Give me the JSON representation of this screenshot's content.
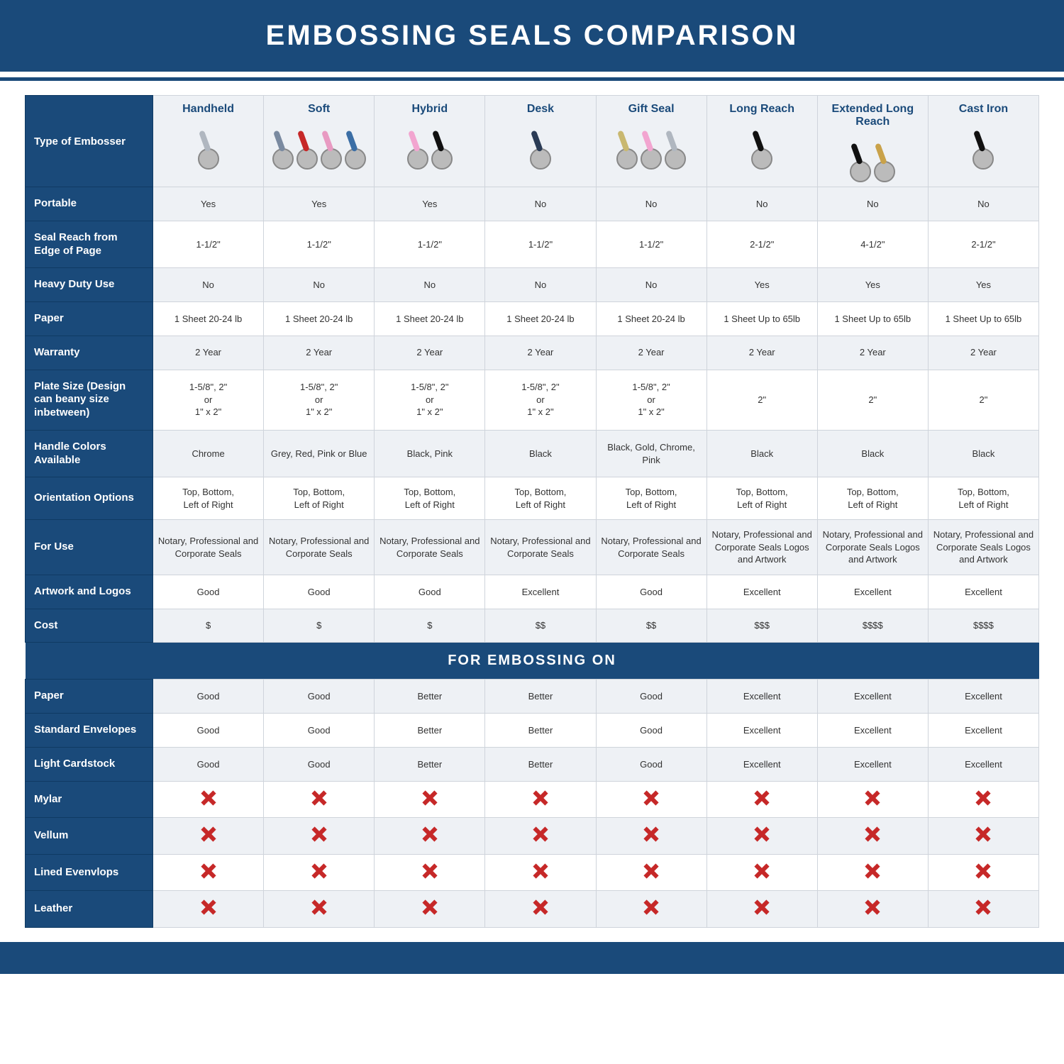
{
  "title": "EMBOSSING SEALS COMPARISON",
  "section_title": "FOR EMBOSSING ON",
  "colors": {
    "primary": "#1a4a7a",
    "header_bg": "#eef1f5",
    "stripe_a": "#eef1f5",
    "stripe_b": "#ffffff",
    "border": "#cfd4db",
    "text": "#333333",
    "x_red": "#c62828"
  },
  "fonts": {
    "title_pt": 40,
    "colhead_pt": 16,
    "rowhead_pt": 15,
    "cell_pt": 13,
    "section_pt": 20
  },
  "row_header_label": "Type of Embosser",
  "columns": [
    {
      "label": "Handheld",
      "img_colors": [
        "#b0b7c0"
      ]
    },
    {
      "label": "Soft",
      "img_colors": [
        "#7a8aa0",
        "#c62828",
        "#e89ac2",
        "#3b6ea5"
      ]
    },
    {
      "label": "Hybrid",
      "img_colors": [
        "#f2a5d0",
        "#111111"
      ]
    },
    {
      "label": "Desk",
      "img_colors": [
        "#2a3b55"
      ]
    },
    {
      "label": "Gift Seal",
      "img_colors": [
        "#c9b870",
        "#f2a5d0",
        "#b0b7c0"
      ]
    },
    {
      "label": "Long Reach",
      "img_colors": [
        "#111111"
      ]
    },
    {
      "label": "Extended Long Reach",
      "img_colors": [
        "#111111",
        "#c9a24a"
      ]
    },
    {
      "label": "Cast Iron",
      "img_colors": [
        "#111111"
      ]
    }
  ],
  "spec_rows": [
    {
      "label": "Portable",
      "values": [
        "Yes",
        "Yes",
        "Yes",
        "No",
        "No",
        "No",
        "No",
        "No"
      ]
    },
    {
      "label": "Seal Reach from Edge of Page",
      "values": [
        "1-1/2\"",
        "1-1/2\"",
        "1-1/2\"",
        "1-1/2\"",
        "1-1/2\"",
        "2-1/2\"",
        "4-1/2\"",
        "2-1/2\""
      ]
    },
    {
      "label": "Heavy Duty Use",
      "values": [
        "No",
        "No",
        "No",
        "No",
        "No",
        "Yes",
        "Yes",
        "Yes"
      ]
    },
    {
      "label": "Paper",
      "values": [
        "1 Sheet 20-24 lb",
        "1 Sheet 20-24 lb",
        "1 Sheet 20-24 lb",
        "1 Sheet 20-24 lb",
        "1 Sheet 20-24 lb",
        "1 Sheet Up to 65lb",
        "1 Sheet Up to 65lb",
        "1 Sheet Up to 65lb"
      ]
    },
    {
      "label": "Warranty",
      "values": [
        "2 Year",
        "2 Year",
        "2 Year",
        "2 Year",
        "2 Year",
        "2 Year",
        "2 Year",
        "2 Year"
      ]
    },
    {
      "label": "Plate Size (Design can beany size inbetween)",
      "values": [
        "1-5/8\", 2\"\nor\n1\" x 2\"",
        "1-5/8\", 2\"\nor\n1\" x 2\"",
        "1-5/8\", 2\"\nor\n1\" x 2\"",
        "1-5/8\", 2\"\nor\n1\" x 2\"",
        "1-5/8\", 2\"\nor\n1\" x 2\"",
        "2\"",
        "2\"",
        "2\""
      ]
    },
    {
      "label": "Handle Colors Available",
      "values": [
        "Chrome",
        "Grey, Red, Pink or Blue",
        "Black, Pink",
        "Black",
        "Black, Gold, Chrome, Pink",
        "Black",
        "Black",
        "Black"
      ]
    },
    {
      "label": "Orientation Options",
      "values": [
        "Top, Bottom,\nLeft of Right",
        "Top, Bottom,\nLeft of Right",
        "Top, Bottom,\nLeft of Right",
        "Top, Bottom,\nLeft of Right",
        "Top, Bottom,\nLeft of Right",
        "Top, Bottom,\nLeft of Right",
        "Top, Bottom,\nLeft of Right",
        "Top, Bottom,\nLeft of Right"
      ]
    },
    {
      "label": "For Use",
      "values": [
        "Notary, Professional and Corporate Seals",
        "Notary, Professional and Corporate Seals",
        "Notary, Professional and Corporate Seals",
        "Notary, Professional and Corporate Seals",
        "Notary, Professional and Corporate Seals",
        "Notary, Professional and Corporate Seals Logos and Artwork",
        "Notary, Professional and Corporate Seals Logos and Artwork",
        "Notary, Professional and Corporate Seals Logos and Artwork"
      ]
    },
    {
      "label": "Artwork and Logos",
      "values": [
        "Good",
        "Good",
        "Good",
        "Excellent",
        "Good",
        "Excellent",
        "Excellent",
        "Excellent"
      ]
    },
    {
      "label": "Cost",
      "values": [
        "$",
        "$",
        "$",
        "$$",
        "$$",
        "$$$",
        "$$$$",
        "$$$$"
      ]
    }
  ],
  "emboss_rows": [
    {
      "label": "Paper",
      "values": [
        "Good",
        "Good",
        "Better",
        "Better",
        "Good",
        "Excellent",
        "Excellent",
        "Excellent"
      ]
    },
    {
      "label": "Standard Envelopes",
      "values": [
        "Good",
        "Good",
        "Better",
        "Better",
        "Good",
        "Excellent",
        "Excellent",
        "Excellent"
      ]
    },
    {
      "label": "Light Cardstock",
      "values": [
        "Good",
        "Good",
        "Better",
        "Better",
        "Good",
        "Excellent",
        "Excellent",
        "Excellent"
      ]
    },
    {
      "label": "Mylar",
      "values": [
        "X",
        "X",
        "X",
        "X",
        "X",
        "X",
        "X",
        "X"
      ]
    },
    {
      "label": "Vellum",
      "values": [
        "X",
        "X",
        "X",
        "X",
        "X",
        "X",
        "X",
        "X"
      ]
    },
    {
      "label": "Lined Evenvlops",
      "values": [
        "X",
        "X",
        "X",
        "X",
        "X",
        "X",
        "X",
        "X"
      ]
    },
    {
      "label": "Leather",
      "values": [
        "X",
        "X",
        "X",
        "X",
        "X",
        "X",
        "X",
        "X"
      ]
    }
  ]
}
